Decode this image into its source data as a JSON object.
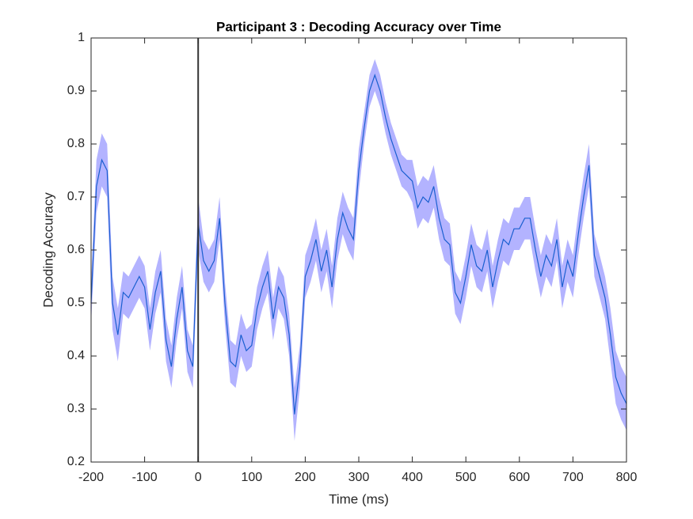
{
  "chart_data": {
    "type": "line",
    "title": "Participant 3 : Decoding Accuracy over Time",
    "xlabel": "Time (ms)",
    "ylabel": "Decoding Accuracy",
    "x": [
      -200,
      -190,
      -180,
      -170,
      -160,
      -150,
      -140,
      -130,
      -120,
      -110,
      -100,
      -90,
      -80,
      -70,
      -60,
      -50,
      -40,
      -30,
      -20,
      -10,
      0,
      10,
      20,
      30,
      40,
      50,
      60,
      70,
      80,
      90,
      100,
      110,
      120,
      130,
      140,
      150,
      160,
      170,
      180,
      190,
      200,
      210,
      220,
      230,
      240,
      250,
      260,
      270,
      280,
      290,
      300,
      310,
      320,
      330,
      340,
      350,
      360,
      370,
      380,
      390,
      400,
      410,
      420,
      430,
      440,
      450,
      460,
      470,
      480,
      490,
      500,
      510,
      520,
      530,
      540,
      550,
      560,
      570,
      580,
      590,
      600,
      610,
      620,
      630,
      640,
      650,
      660,
      670,
      680,
      690,
      700,
      710,
      720,
      730,
      740,
      750,
      760,
      770,
      780,
      790,
      800
    ],
    "values": [
      0.5,
      0.72,
      0.77,
      0.75,
      0.5,
      0.44,
      0.52,
      0.51,
      0.53,
      0.55,
      0.53,
      0.45,
      0.52,
      0.56,
      0.43,
      0.38,
      0.47,
      0.53,
      0.41,
      0.38,
      0.65,
      0.58,
      0.56,
      0.58,
      0.66,
      0.5,
      0.39,
      0.38,
      0.44,
      0.41,
      0.42,
      0.49,
      0.53,
      0.56,
      0.47,
      0.53,
      0.51,
      0.44,
      0.29,
      0.38,
      0.55,
      0.58,
      0.62,
      0.56,
      0.6,
      0.53,
      0.62,
      0.67,
      0.64,
      0.62,
      0.75,
      0.83,
      0.9,
      0.93,
      0.9,
      0.85,
      0.81,
      0.78,
      0.75,
      0.74,
      0.73,
      0.68,
      0.7,
      0.69,
      0.72,
      0.66,
      0.62,
      0.61,
      0.52,
      0.5,
      0.55,
      0.61,
      0.57,
      0.56,
      0.6,
      0.53,
      0.58,
      0.62,
      0.61,
      0.64,
      0.64,
      0.66,
      0.66,
      0.6,
      0.55,
      0.59,
      0.57,
      0.62,
      0.53,
      0.58,
      0.55,
      0.63,
      0.7,
      0.76,
      0.59,
      0.55,
      0.51,
      0.44,
      0.36,
      0.33,
      0.31
    ],
    "error": [
      0.04,
      0.05,
      0.05,
      0.05,
      0.05,
      0.05,
      0.04,
      0.04,
      0.04,
      0.04,
      0.04,
      0.04,
      0.04,
      0.04,
      0.04,
      0.04,
      0.04,
      0.04,
      0.04,
      0.04,
      0.05,
      0.04,
      0.04,
      0.04,
      0.04,
      0.04,
      0.04,
      0.04,
      0.04,
      0.04,
      0.04,
      0.04,
      0.04,
      0.04,
      0.04,
      0.04,
      0.04,
      0.04,
      0.05,
      0.04,
      0.04,
      0.04,
      0.04,
      0.04,
      0.04,
      0.04,
      0.04,
      0.04,
      0.04,
      0.04,
      0.04,
      0.03,
      0.03,
      0.03,
      0.03,
      0.03,
      0.03,
      0.03,
      0.03,
      0.03,
      0.04,
      0.04,
      0.04,
      0.04,
      0.04,
      0.04,
      0.04,
      0.04,
      0.04,
      0.04,
      0.04,
      0.04,
      0.04,
      0.04,
      0.04,
      0.04,
      0.04,
      0.04,
      0.04,
      0.04,
      0.04,
      0.04,
      0.04,
      0.04,
      0.04,
      0.04,
      0.04,
      0.04,
      0.04,
      0.04,
      0.04,
      0.04,
      0.04,
      0.04,
      0.04,
      0.04,
      0.04,
      0.05,
      0.05,
      0.05,
      0.05
    ],
    "color": "#1a5fd0",
    "band_color": "#b3b3ff",
    "vline": 0,
    "vline_color": "#333333",
    "xlim": [
      -200,
      800
    ],
    "xticks": [
      -200,
      -100,
      0,
      100,
      200,
      300,
      400,
      500,
      600,
      700,
      800
    ],
    "ylim": [
      0.2,
      1
    ],
    "yticks": [
      0.2,
      0.3,
      0.4,
      0.5,
      0.6,
      0.7,
      0.8,
      0.9,
      1
    ]
  }
}
